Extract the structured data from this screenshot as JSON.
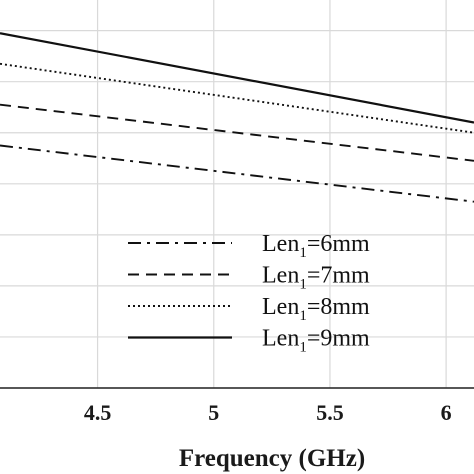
{
  "chart_data": {
    "type": "line",
    "xlabel": "Frequency (GHz)",
    "ylabel": "",
    "title": "",
    "x_ticks": [
      "4.5",
      "5",
      "5.5",
      "6"
    ],
    "x_tick_values": [
      4.5,
      5,
      5.5,
      6
    ],
    "xlim": [
      4.08,
      6.12
    ],
    "ylim": [
      0,
      7.6
    ],
    "y_gridlines": [
      0,
      1,
      2,
      3,
      4,
      5,
      6,
      7
    ],
    "grid": true,
    "legend_position": "bottom-right",
    "series": [
      {
        "name_prefix": "Len",
        "name_sub": "1",
        "name_suffix": "=6mm",
        "dash": "dash-dot",
        "x": [
          4.08,
          6.12
        ],
        "y": [
          4.75,
          3.65
        ]
      },
      {
        "name_prefix": "Len",
        "name_sub": "1",
        "name_suffix": "=7mm",
        "dash": "dashed",
        "x": [
          4.08,
          6.12
        ],
        "y": [
          5.55,
          4.45
        ]
      },
      {
        "name_prefix": "Len",
        "name_sub": "1",
        "name_suffix": "=8mm",
        "dash": "dotted",
        "x": [
          4.08,
          6.12
        ],
        "y": [
          6.35,
          5.0
        ]
      },
      {
        "name_prefix": "Len",
        "name_sub": "1",
        "name_suffix": "=9mm",
        "dash": "solid",
        "x": [
          4.08,
          6.12
        ],
        "y": [
          6.95,
          5.2
        ]
      }
    ],
    "colors": {
      "line": "#111111",
      "grid": "#d9d9d9",
      "axis": "#222222",
      "text": "#1a1a1a"
    }
  }
}
